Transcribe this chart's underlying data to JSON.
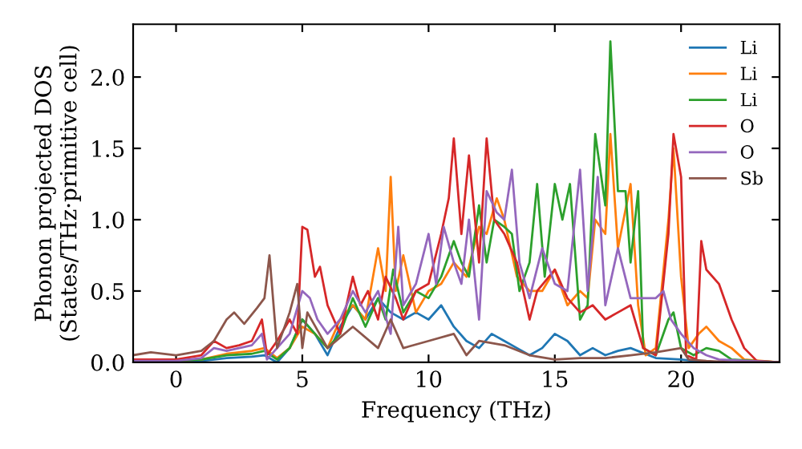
{
  "chart_data": {
    "type": "line",
    "xlabel": "Frequency (THz)",
    "ylabel": "Phonon projected DOS\n(States/THz·primitive cell)",
    "xlim": [
      -1.7,
      23.9
    ],
    "ylim": [
      0,
      2.37
    ],
    "xticks": [
      0,
      5,
      10,
      15,
      20
    ],
    "yticks": [
      {
        "value": 0,
        "label": "0.0"
      },
      {
        "value": 0.5,
        "label": "0.5"
      },
      {
        "value": 1,
        "label": "1.0"
      },
      {
        "value": 1.5,
        "label": "1.5"
      },
      {
        "value": 2,
        "label": "2.0"
      }
    ],
    "grid": false,
    "legend": "top right",
    "marker": "none",
    "line_style": "solid",
    "series": [
      {
        "name": "Li",
        "color": "#1f77b4",
        "x": [
          -1.7,
          1,
          2,
          3,
          3.5,
          4,
          4.5,
          5,
          5.5,
          6,
          6.5,
          7,
          7.5,
          8,
          8.5,
          9,
          9.5,
          10,
          10.5,
          11,
          11.5,
          12,
          12.5,
          13,
          13.5,
          14,
          14.5,
          15,
          15.5,
          16,
          16.5,
          17,
          17.5,
          18,
          19,
          20,
          21,
          23.9
        ],
        "values": [
          0,
          0.01,
          0.03,
          0.04,
          0.05,
          0,
          0.1,
          0.3,
          0.2,
          0.05,
          0.25,
          0.4,
          0.3,
          0.45,
          0.35,
          0.3,
          0.35,
          0.3,
          0.4,
          0.25,
          0.15,
          0.1,
          0.2,
          0.15,
          0.1,
          0.05,
          0.1,
          0.2,
          0.15,
          0.05,
          0.1,
          0.05,
          0.08,
          0.1,
          0.03,
          0.02,
          0,
          0
        ]
      },
      {
        "name": "Li",
        "color": "#ff7f0e",
        "x": [
          -1.7,
          1,
          2,
          3,
          3.5,
          4,
          4.5,
          5,
          5.5,
          6,
          6.5,
          7,
          7.5,
          8,
          8.3,
          8.5,
          8.7,
          9,
          9.5,
          10,
          10.5,
          11,
          11.5,
          12,
          12.3,
          12.7,
          13,
          13.5,
          14,
          14.5,
          15,
          15.5,
          16,
          16.3,
          16.6,
          17,
          17.2,
          17.5,
          18,
          18.3,
          18.6,
          19,
          19.5,
          19.7,
          20,
          20.3,
          20.7,
          21,
          21.5,
          22,
          22.5,
          23.9
        ],
        "values": [
          0,
          0.02,
          0.06,
          0.08,
          0.1,
          0.03,
          0.1,
          0.25,
          0.2,
          0.1,
          0.3,
          0.4,
          0.3,
          0.8,
          0.5,
          1.3,
          0.5,
          0.75,
          0.35,
          0.5,
          0.55,
          0.7,
          0.6,
          0.95,
          0.9,
          1.15,
          1.0,
          0.6,
          0.5,
          0.5,
          0.65,
          0.4,
          0.5,
          0.45,
          1.0,
          0.9,
          1.6,
          0.8,
          1.25,
          0.4,
          0.05,
          0.1,
          1.0,
          1.5,
          0.6,
          0.1,
          0.2,
          0.25,
          0.15,
          0.1,
          0.02,
          0
        ]
      },
      {
        "name": "Li",
        "color": "#2ca02c",
        "x": [
          -1.7,
          1,
          2,
          3,
          3.5,
          4,
          4.5,
          5,
          5.5,
          6,
          6.5,
          7,
          7.5,
          8,
          8.3,
          8.6,
          9,
          9.5,
          10,
          10.5,
          11,
          11.3,
          11.6,
          12,
          12.3,
          12.6,
          13,
          13.3,
          13.6,
          14,
          14.3,
          14.6,
          15,
          15.3,
          15.6,
          16,
          16.3,
          16.6,
          17,
          17.2,
          17.5,
          17.8,
          18,
          18.3,
          18.5,
          19,
          19.5,
          19.7,
          20,
          20.5,
          21,
          21.5,
          22,
          23.9
        ],
        "values": [
          0,
          0.02,
          0.05,
          0.06,
          0.08,
          0.02,
          0.1,
          0.3,
          0.2,
          0.1,
          0.2,
          0.45,
          0.25,
          0.45,
          0.3,
          0.65,
          0.35,
          0.5,
          0.45,
          0.6,
          0.85,
          0.7,
          0.6,
          1.1,
          0.7,
          1.0,
          0.95,
          0.9,
          0.5,
          0.7,
          1.25,
          0.6,
          1.25,
          1.0,
          1.25,
          0.3,
          0.4,
          1.6,
          1.1,
          2.25,
          1.2,
          1.2,
          0.7,
          1.2,
          0.1,
          0.05,
          0.3,
          0.35,
          0.1,
          0.05,
          0.1,
          0.08,
          0.02,
          0
        ]
      },
      {
        "name": "O",
        "color": "#d62728",
        "x": [
          -1.7,
          0,
          1,
          1.5,
          2,
          2.5,
          3,
          3.4,
          3.6,
          4,
          4.5,
          4.8,
          5,
          5.2,
          5.5,
          5.7,
          6,
          6.5,
          7,
          7.3,
          7.6,
          8,
          8.3,
          8.7,
          9,
          9.5,
          10,
          10.5,
          10.8,
          11,
          11.3,
          11.6,
          12,
          12.3,
          12.6,
          13,
          13.5,
          14,
          14.3,
          15,
          15.5,
          16,
          16.5,
          17,
          17.5,
          18,
          18.5,
          19,
          19.5,
          19.7,
          20,
          20.2,
          20.6,
          20.8,
          21,
          21.5,
          22,
          22.5,
          23,
          23.9
        ],
        "values": [
          0.02,
          0.02,
          0.05,
          0.15,
          0.1,
          0.12,
          0.15,
          0.3,
          0.05,
          0.15,
          0.3,
          0.2,
          0.95,
          0.93,
          0.6,
          0.67,
          0.4,
          0.2,
          0.6,
          0.4,
          0.5,
          0.3,
          0.6,
          0.45,
          0.3,
          0.5,
          0.55,
          0.9,
          1.15,
          1.57,
          0.9,
          1.45,
          0.7,
          1.57,
          1.0,
          0.9,
          0.7,
          0.3,
          0.5,
          0.65,
          0.45,
          0.35,
          0.4,
          0.3,
          0.35,
          0.4,
          0.1,
          0.05,
          0.9,
          1.6,
          1.3,
          0.05,
          0.02,
          0.85,
          0.65,
          0.55,
          0.3,
          0.1,
          0.01,
          0
        ]
      },
      {
        "name": "O",
        "color": "#9467bd",
        "x": [
          -1.7,
          0,
          1,
          1.5,
          2,
          3,
          3.4,
          3.6,
          4,
          4.5,
          5,
          5.3,
          5.6,
          6,
          6.5,
          7,
          7.5,
          8,
          8.5,
          8.8,
          9,
          9.5,
          10,
          10.3,
          10.6,
          11,
          11.3,
          11.6,
          12,
          12.3,
          12.7,
          13,
          13.3,
          13.6,
          14,
          14.5,
          15,
          15.5,
          16,
          16.3,
          16.7,
          17,
          17.5,
          18,
          18.5,
          19,
          19.3,
          19.6,
          20,
          20.5,
          21,
          21.5,
          23.9
        ],
        "values": [
          0.01,
          0.01,
          0.03,
          0.1,
          0.08,
          0.12,
          0.2,
          0.02,
          0.1,
          0.2,
          0.5,
          0.45,
          0.3,
          0.2,
          0.3,
          0.5,
          0.35,
          0.5,
          0.2,
          0.95,
          0.4,
          0.55,
          0.9,
          0.55,
          0.95,
          0.7,
          0.55,
          1.0,
          0.3,
          1.2,
          1.05,
          1.0,
          1.35,
          0.7,
          0.45,
          0.8,
          0.55,
          0.5,
          1.35,
          0.5,
          1.3,
          0.4,
          0.8,
          0.45,
          0.45,
          0.45,
          0.5,
          0.3,
          0.2,
          0.1,
          0.05,
          0.02,
          0
        ]
      },
      {
        "name": "Sb",
        "color": "#8c564b",
        "x": [
          -1.7,
          -1,
          0,
          1,
          1.5,
          2,
          2.3,
          2.7,
          3.2,
          3.5,
          3.7,
          4,
          4.5,
          4.8,
          5,
          5.2,
          6,
          7,
          8,
          8.5,
          9,
          10,
          11,
          11.5,
          12,
          13,
          14,
          15,
          16,
          17,
          18,
          19,
          20,
          20.3,
          21,
          22,
          23.9
        ],
        "values": [
          0.05,
          0.07,
          0.05,
          0.08,
          0.15,
          0.3,
          0.35,
          0.27,
          0.38,
          0.45,
          0.75,
          0.1,
          0.35,
          0.55,
          0.1,
          0.35,
          0.1,
          0.25,
          0.1,
          0.3,
          0.1,
          0.15,
          0.2,
          0.05,
          0.15,
          0.12,
          0.05,
          0.02,
          0.03,
          0.03,
          0.05,
          0.07,
          0.1,
          0.02,
          0.01,
          0,
          0
        ]
      }
    ]
  }
}
